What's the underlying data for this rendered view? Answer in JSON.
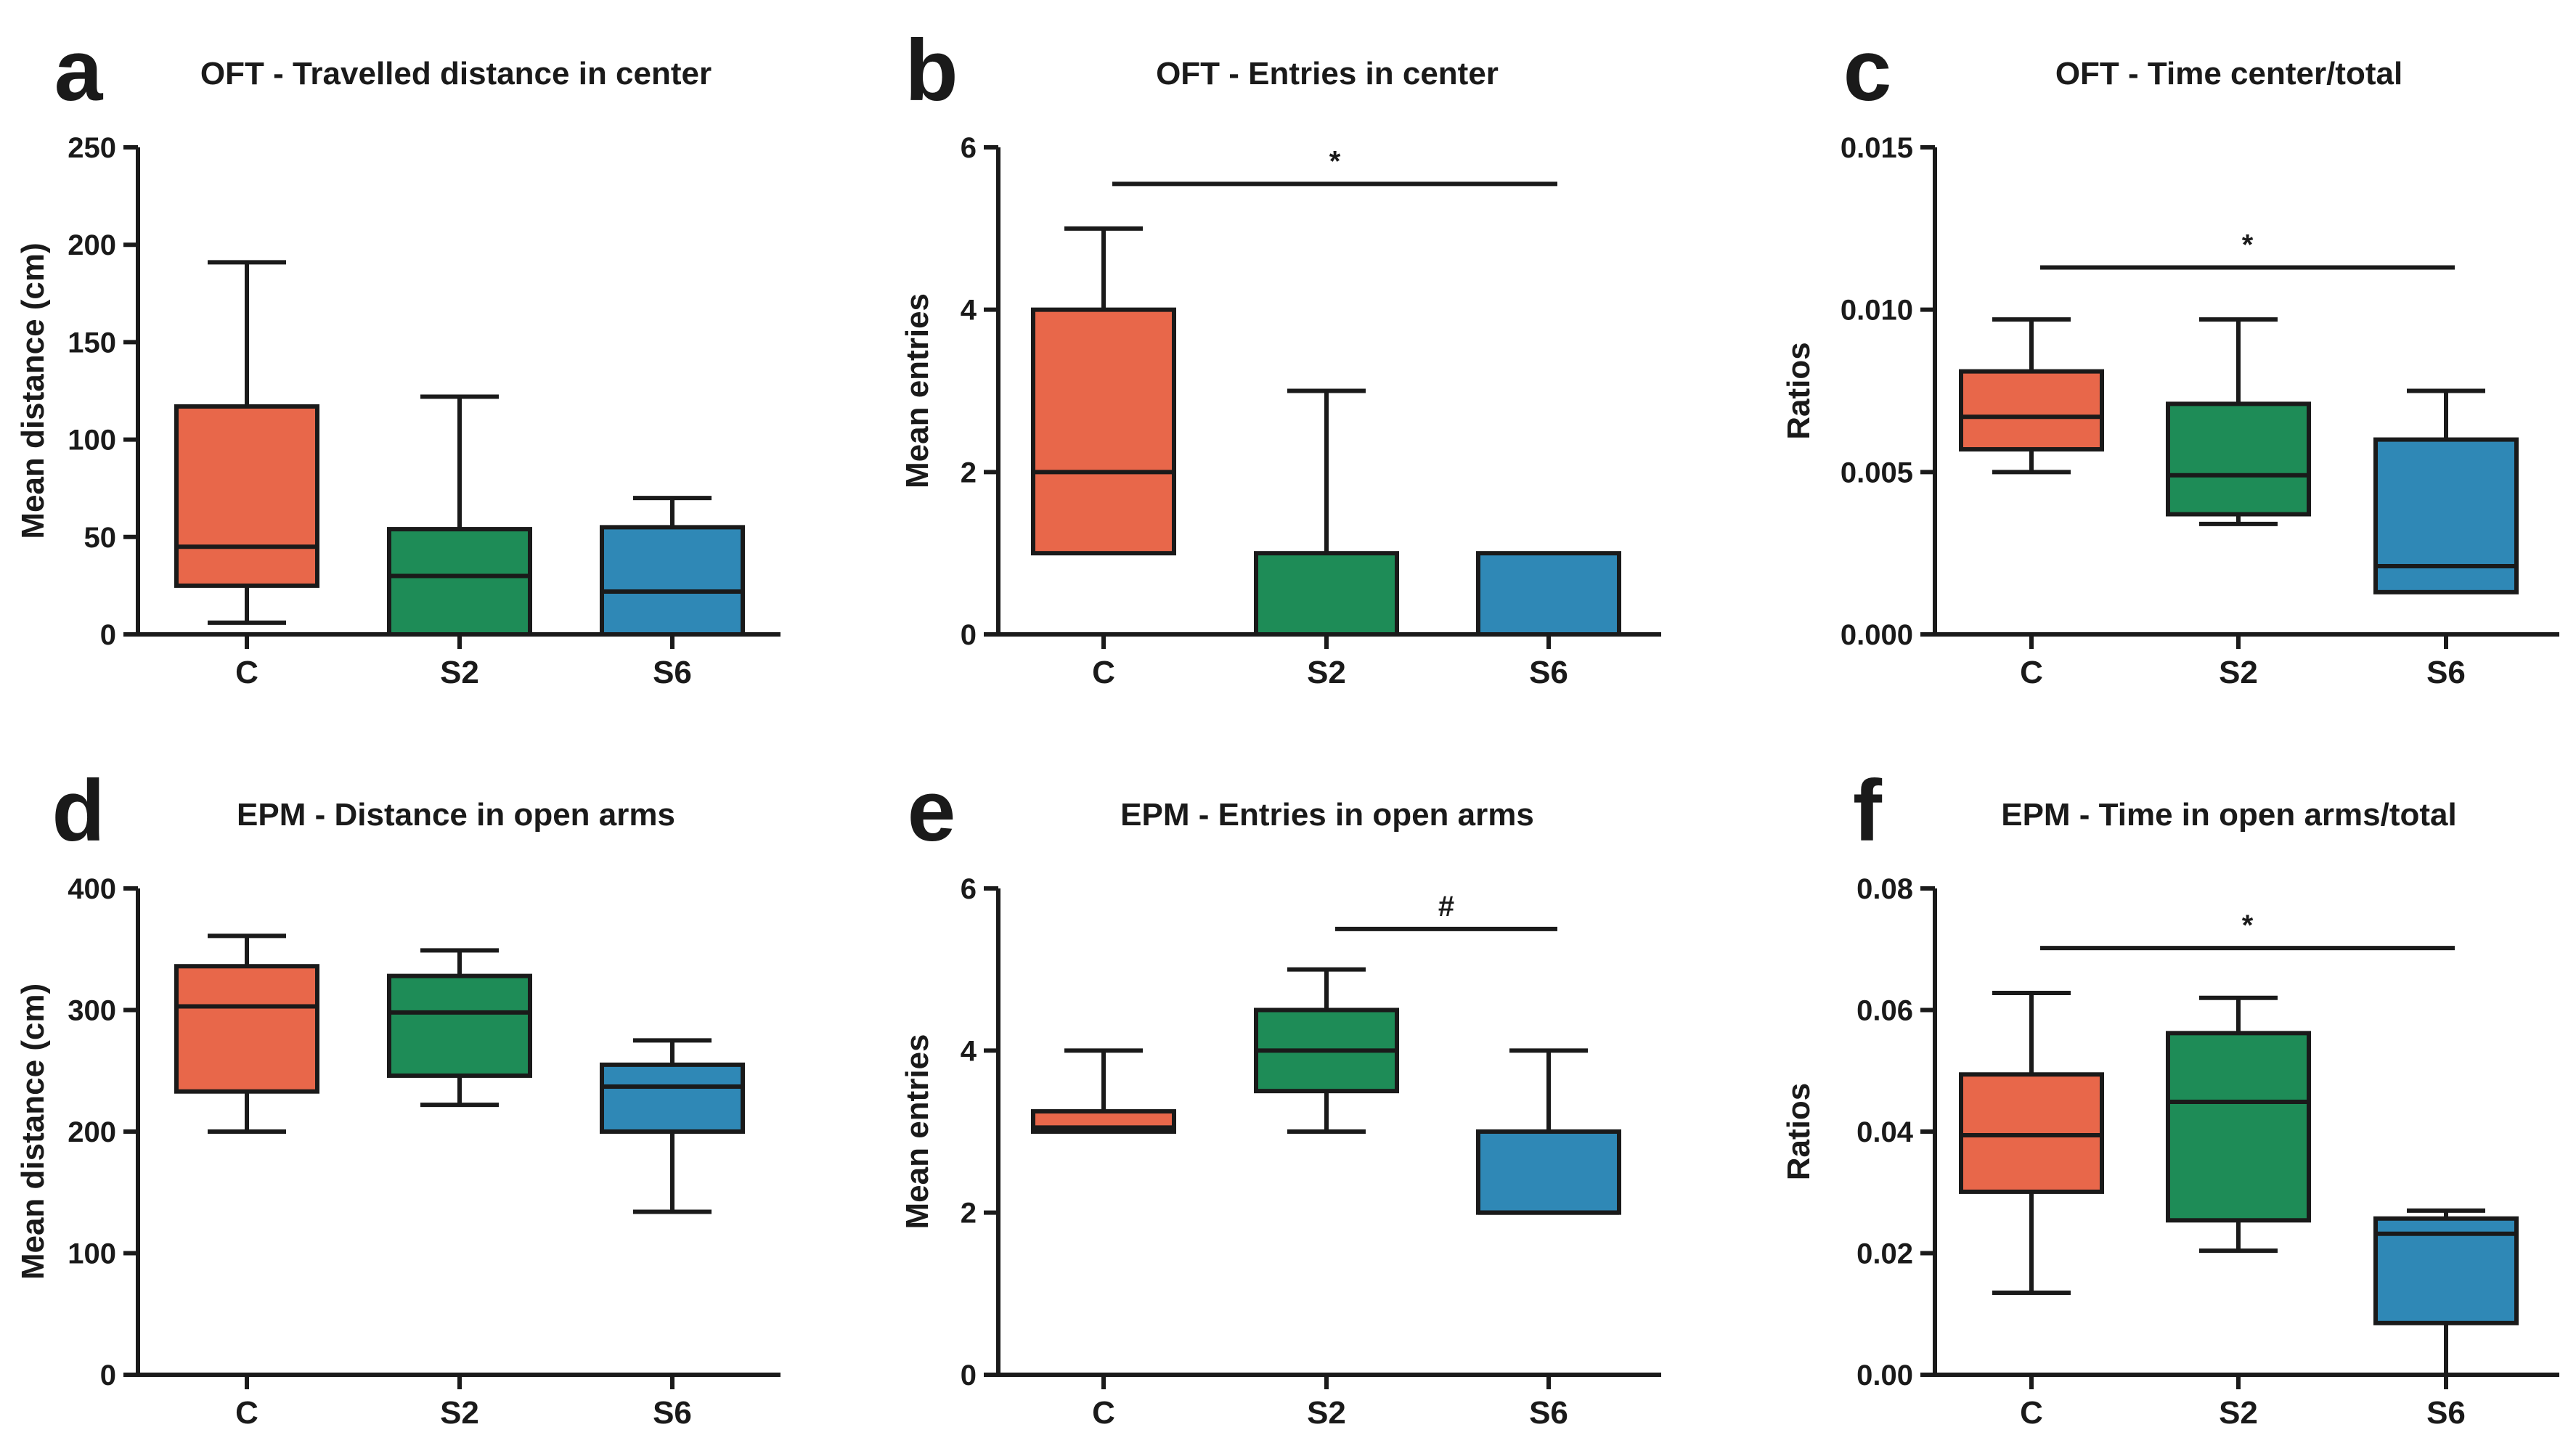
{
  "figure": {
    "colors": {
      "C": "#e8674a",
      "S2": "#1e8c57",
      "S6": "#2f88b6",
      "line": "#1a1a1a"
    }
  },
  "chart_data": [
    {
      "type": "box",
      "panel": "a",
      "title": "OFT - Travelled distance in center",
      "ylabel": "Mean distance (cm)",
      "xlabel": "",
      "ylim": [
        0,
        250
      ],
      "yticks": [
        "0",
        "50",
        "100",
        "150",
        "200",
        "250"
      ],
      "categories": [
        "C",
        "S2",
        "S6"
      ],
      "boxes": [
        {
          "name": "C",
          "min": 6,
          "q1": 25,
          "median": 45,
          "q3": 117,
          "max": 191
        },
        {
          "name": "S2",
          "min": 0,
          "q1": 0,
          "median": 30,
          "q3": 54,
          "max": 122
        },
        {
          "name": "S6",
          "min": 0,
          "q1": 0,
          "median": 22,
          "q3": 55,
          "max": 70
        }
      ],
      "significance": []
    },
    {
      "type": "box",
      "panel": "b",
      "title": "OFT - Entries in center",
      "ylabel": "Mean entries",
      "xlabel": "",
      "ylim": [
        0,
        6
      ],
      "yticks": [
        "0",
        "2",
        "4",
        "6"
      ],
      "categories": [
        "C",
        "S2",
        "S6"
      ],
      "boxes": [
        {
          "name": "C",
          "min": 1,
          "q1": 1,
          "median": 2,
          "q3": 4,
          "max": 5
        },
        {
          "name": "S2",
          "min": 0,
          "q1": 0,
          "median": 0,
          "q3": 1,
          "max": 3
        },
        {
          "name": "S6",
          "min": 0,
          "q1": 0,
          "median": 0,
          "q3": 1,
          "max": 1
        }
      ],
      "significance": [
        {
          "from": "C",
          "to": "S6",
          "y": 5.55,
          "label": "*"
        }
      ]
    },
    {
      "type": "box",
      "panel": "c",
      "title": "OFT - Time center/total",
      "ylabel": "Ratios",
      "xlabel": "",
      "ylim": [
        0,
        0.015
      ],
      "yticks": [
        "0.000",
        "0.005",
        "0.010",
        "0.015"
      ],
      "categories": [
        "C",
        "S2",
        "S6"
      ],
      "boxes": [
        {
          "name": "C",
          "min": 0.005,
          "q1": 0.0057,
          "median": 0.0067,
          "q3": 0.0081,
          "max": 0.0097
        },
        {
          "name": "S2",
          "min": 0.0034,
          "q1": 0.0037,
          "median": 0.0049,
          "q3": 0.0071,
          "max": 0.0097
        },
        {
          "name": "S6",
          "min": 0.0013,
          "q1": 0.0013,
          "median": 0.0021,
          "q3": 0.006,
          "max": 0.0075
        }
      ],
      "significance": [
        {
          "from": "C",
          "to": "S6",
          "y": 0.0113,
          "label": "*"
        }
      ]
    },
    {
      "type": "box",
      "panel": "d",
      "title": "EPM - Distance in open arms",
      "ylabel": "Mean distance (cm)",
      "xlabel": "",
      "ylim": [
        0,
        400
      ],
      "yticks": [
        "0",
        "100",
        "200",
        "300",
        "400"
      ],
      "categories": [
        "C",
        "S2",
        "S6"
      ],
      "boxes": [
        {
          "name": "C",
          "min": 200,
          "q1": 233,
          "median": 303,
          "q3": 336,
          "max": 361
        },
        {
          "name": "S2",
          "min": 222,
          "q1": 246,
          "median": 298,
          "q3": 328,
          "max": 349
        },
        {
          "name": "S6",
          "min": 134,
          "q1": 200,
          "median": 237,
          "q3": 255,
          "max": 275
        }
      ],
      "significance": []
    },
    {
      "type": "box",
      "panel": "e",
      "title": "EPM - Entries in open arms",
      "ylabel": "Mean entries",
      "xlabel": "",
      "ylim": [
        0,
        6
      ],
      "yticks": [
        "0",
        "2",
        "4",
        "6"
      ],
      "categories": [
        "C",
        "S2",
        "S6"
      ],
      "boxes": [
        {
          "name": "C",
          "min": 3,
          "q1": 3,
          "median": 3.05,
          "q3": 3.25,
          "max": 4
        },
        {
          "name": "S2",
          "min": 3,
          "q1": 3.5,
          "median": 4,
          "q3": 4.5,
          "max": 5
        },
        {
          "name": "S6",
          "min": 2,
          "q1": 2,
          "median": 2,
          "q3": 3,
          "max": 4
        }
      ],
      "significance": [
        {
          "from": "S2",
          "to": "S6",
          "y": 5.5,
          "label": "#"
        }
      ]
    },
    {
      "type": "box",
      "panel": "f",
      "title": "EPM - Time in open arms/total",
      "ylabel": "Ratios",
      "xlabel": "",
      "ylim": [
        0,
        0.08
      ],
      "yticks": [
        "0.00",
        "0.02",
        "0.04",
        "0.06",
        "0.08"
      ],
      "categories": [
        "C",
        "S2",
        "S6"
      ],
      "boxes": [
        {
          "name": "C",
          "min": 0.0135,
          "q1": 0.0301,
          "median": 0.0394,
          "q3": 0.0494,
          "max": 0.0628
        },
        {
          "name": "S2",
          "min": 0.0204,
          "q1": 0.0254,
          "median": 0.0449,
          "q3": 0.0562,
          "max": 0.062
        },
        {
          "name": "S6",
          "min": 0,
          "q1": 0.0085,
          "median": 0.0232,
          "q3": 0.0257,
          "max": 0.027
        }
      ],
      "significance": [
        {
          "from": "C",
          "to": "S6",
          "y": 0.0702,
          "label": "*"
        }
      ]
    }
  ]
}
